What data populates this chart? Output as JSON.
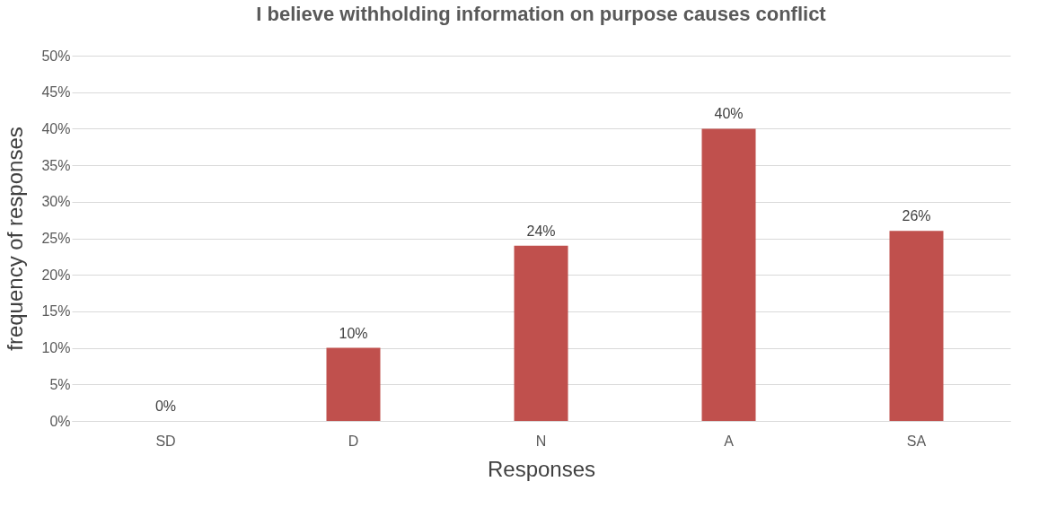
{
  "chart_data": {
    "type": "bar",
    "title": "I believe withholding information on purpose causes conflict",
    "xlabel": "Responses",
    "ylabel": "frequency of responses",
    "categories": [
      "SD",
      "D",
      "N",
      "A",
      "SA"
    ],
    "values": [
      0,
      10,
      24,
      40,
      26
    ],
    "color": "#c0504d",
    "value_labels": [
      "0%",
      "10%",
      "24%",
      "40%",
      "26%"
    ],
    "ylim": [
      0,
      50
    ],
    "yticks": [
      {
        "value": 0,
        "label": "0%"
      },
      {
        "value": 5,
        "label": "5%"
      },
      {
        "value": 10,
        "label": "10%"
      },
      {
        "value": 15,
        "label": "15%"
      },
      {
        "value": 20,
        "label": "20%"
      },
      {
        "value": 25,
        "label": "25%"
      },
      {
        "value": 30,
        "label": "30%"
      },
      {
        "value": 35,
        "label": "35%"
      },
      {
        "value": 40,
        "label": "40%"
      },
      {
        "value": 45,
        "label": "45%"
      },
      {
        "value": 50,
        "label": "50%"
      }
    ],
    "grid": "y"
  }
}
